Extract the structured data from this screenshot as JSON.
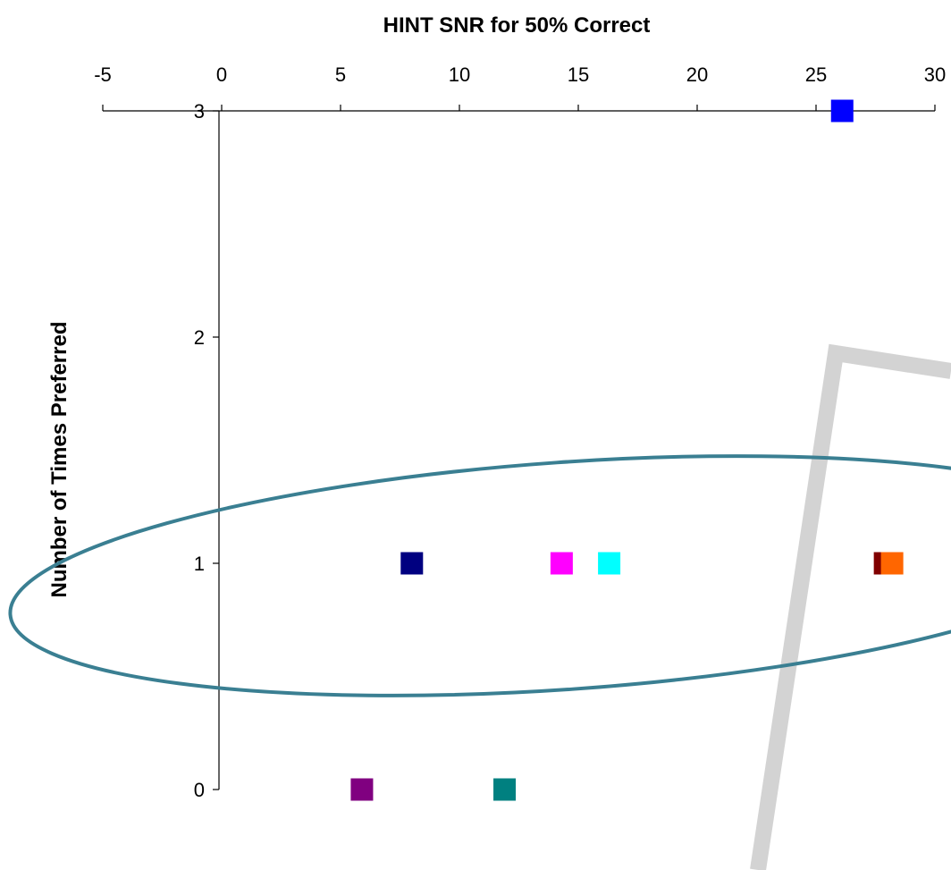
{
  "chart_data": {
    "type": "scatter",
    "title": "",
    "xlabel": "HINT SNR for 50% Correct",
    "ylabel": "Number of Times Preferred",
    "x_axis_position": "top",
    "xlim": [
      -5,
      30
    ],
    "ylim": [
      0,
      3
    ],
    "x_ticks": [
      -5,
      0,
      5,
      10,
      15,
      20,
      25,
      30
    ],
    "y_ticks": [
      0,
      1,
      2,
      3
    ],
    "grid": false,
    "legend": "none",
    "marker": "square",
    "points": [
      {
        "x": 26.1,
        "y": 3,
        "color": "#0000ff"
      },
      {
        "x": 8.0,
        "y": 1,
        "color": "#000080"
      },
      {
        "x": 14.3,
        "y": 1,
        "color": "#ff00ff"
      },
      {
        "x": 16.3,
        "y": 1,
        "color": "#00ffff"
      },
      {
        "x": 27.9,
        "y": 1,
        "color": "#800000"
      },
      {
        "x": 28.2,
        "y": 1,
        "color": "#ff6600"
      },
      {
        "x": 5.9,
        "y": 0,
        "color": "#800080"
      },
      {
        "x": 11.9,
        "y": 0,
        "color": "#008080"
      }
    ],
    "annotations": [
      {
        "shape": "ellipse",
        "color": "#3a7f92"
      },
      {
        "shape": "gray-bracket",
        "color": "#c0c0c0"
      }
    ]
  }
}
